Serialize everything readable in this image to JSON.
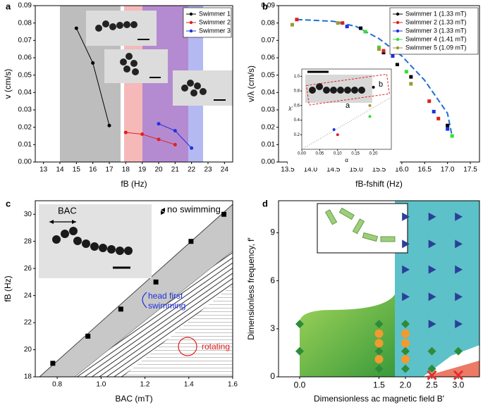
{
  "chart_data": [
    {
      "type": "line",
      "panel": "a",
      "x_label": "fB (Hz)",
      "y_label": "v (cm/s)",
      "xlim": [
        12.5,
        24.5
      ],
      "xticks": [
        13,
        14,
        15,
        16,
        17,
        18,
        19,
        20,
        21,
        22,
        23,
        24
      ],
      "ylim": [
        0,
        0.09
      ],
      "yticks": [
        {
          "value": 0,
          "label": "0.00"
        },
        0.01,
        0.02,
        0.03,
        0.04,
        0.05,
        0.06,
        0.07,
        0.08,
        0.09
      ],
      "legend": "upper right",
      "series": [
        {
          "name": "Swimmer 1",
          "color": "#000000",
          "x": [
            15,
            16,
            17
          ],
          "values": [
            0.077,
            0.057,
            0.021
          ]
        },
        {
          "name": "Swimmer 2",
          "color": "#e02020",
          "x": [
            18,
            19,
            20,
            21
          ],
          "values": [
            0.017,
            0.016,
            0.013,
            0.01
          ]
        },
        {
          "name": "Swimmer 3",
          "color": "#2030e0",
          "x": [
            20,
            21,
            22
          ],
          "values": [
            0.022,
            0.018,
            0.008
          ]
        }
      ]
    },
    {
      "type": "scatter",
      "panel": "b",
      "x_label": "fB-fshift (Hz)",
      "y_label": "v/λ (cm/s)",
      "xlim": [
        13.3,
        17.7
      ],
      "xticks": [
        13.5,
        {
          "value": 14,
          "label": "14.0"
        },
        14.5,
        {
          "value": 15,
          "label": "15.0"
        },
        15.5,
        {
          "value": 16,
          "label": "16.0"
        },
        16.5,
        {
          "value": 17,
          "label": "17.0"
        },
        17.5
      ],
      "ylim": [
        0,
        0.09
      ],
      "yticks": [
        {
          "value": 0,
          "label": "0.00"
        },
        0.01,
        0.02,
        0.03,
        0.04,
        0.05,
        0.06,
        0.07,
        0.08,
        0.09
      ],
      "legend": "upper right",
      "series": [
        {
          "name": "Swimmer 1 (1.33 mT)",
          "color": "#000000",
          "x": [
            15.1,
            15.6,
            15.9,
            16.2,
            17.0
          ],
          "values": [
            0.077,
            0.063,
            0.056,
            0.049,
            0.021
          ]
        },
        {
          "name": "Swimmer 2 (1.33 mT)",
          "color": "#e02020",
          "x": [
            13.7,
            14.7,
            15.6,
            16.6,
            16.8
          ],
          "values": [
            0.082,
            0.08,
            0.064,
            0.035,
            0.025
          ]
        },
        {
          "name": "Swimmer 3 (1.33 mT)",
          "color": "#2030e0",
          "x": [
            14.8,
            15.8,
            16.7,
            17.0
          ],
          "values": [
            0.078,
            0.061,
            0.029,
            0.019
          ]
        },
        {
          "name": "Swimmer 4 (1.41 mT)",
          "color": "#30e030",
          "x": [
            15.2,
            15.5,
            16.1,
            17.1
          ],
          "values": [
            0.075,
            0.066,
            0.052,
            0.015
          ]
        },
        {
          "name": "Swimmer 5 (1.09 mT)",
          "color": "#9a9a30",
          "x": [
            13.6,
            14.6,
            15.5,
            16.2
          ],
          "values": [
            0.079,
            0.08,
            0.065,
            0.045
          ]
        }
      ],
      "fit": {
        "color": "#1f6fd1",
        "x": [
          13.7,
          14.5,
          15.0,
          15.5,
          16.0,
          16.5,
          17.0,
          17.1
        ],
        "values": [
          0.082,
          0.081,
          0.078,
          0.071,
          0.061,
          0.047,
          0.028,
          0.015
        ]
      },
      "inset": {
        "x_label": "α",
        "y_label": "λ′",
        "xlim": [
          0,
          0.25
        ],
        "xticks": [
          {
            "value": 0,
            "label": "0.00"
          },
          0.05,
          {
            "value": 0.1,
            "label": "0.10"
          },
          0.15,
          {
            "value": 0.2,
            "label": "0.20"
          }
        ],
        "ylim": [
          0,
          1.1
        ],
        "yticks": [
          0.2,
          0.4,
          0.6,
          0.8,
          {
            "value": 1,
            "label": "1.0"
          }
        ],
        "x": [
          0.2,
          0.19,
          0.19,
          0.09,
          0.1
        ],
        "values": [
          0.85,
          0.6,
          0.45,
          0.27,
          0.2
        ],
        "colors": [
          "#000000",
          "#9a9a30",
          "#30e030",
          "#2030e0",
          "#e02020"
        ],
        "labels": [
          "a",
          "b"
        ]
      }
    },
    {
      "type": "scatter",
      "panel": "c",
      "x_label": "BAC (mT)",
      "y_label": "fB (Hz)",
      "xlim": [
        0.7,
        1.6
      ],
      "xticks": [
        0.8,
        {
          "value": 1,
          "label": "1.0"
        },
        1.2,
        1.4,
        1.6
      ],
      "ylim": [
        18,
        31
      ],
      "yticks": [
        18,
        20,
        22,
        24,
        26,
        28,
        30
      ],
      "series": [
        {
          "color": "#000000",
          "x": [
            0.78,
            0.94,
            1.09,
            1.25,
            1.41,
            1.56
          ],
          "values": [
            19,
            21,
            23,
            25,
            28,
            30
          ]
        }
      ],
      "annotations": [
        {
          "text": "no swimming",
          "color": "#000000"
        },
        {
          "text": "head first",
          "color": "#2030e0"
        },
        {
          "text": "swimming",
          "color": "#2030e0"
        },
        {
          "text": "rotating",
          "color": "#e02020"
        },
        {
          "text": "BAC",
          "color": "#000000"
        }
      ]
    },
    {
      "type": "scatter",
      "panel": "d",
      "x_label": "Dimensionless ac magnetic field B′",
      "y_label": "Dimensionless frequency, f′",
      "xlim": [
        -0.4,
        3.4
      ],
      "xticks": [
        {
          "value": 0,
          "label": "0.0"
        },
        1.5,
        {
          "value": 2,
          "label": "2.0"
        },
        2.5,
        {
          "value": 3,
          "label": "3.0"
        }
      ],
      "ylim": [
        0,
        11
      ],
      "yticks": [
        0,
        3,
        6,
        9
      ],
      "series": [
        {
          "marker": "diamond",
          "color": "#2e8b3a",
          "x": [
            0,
            0,
            1.5,
            1.5,
            1.5,
            2,
            2,
            2,
            2.5,
            3,
            2.5
          ],
          "values": [
            3.3,
            1.6,
            3.3,
            1.6,
            0.5,
            3.3,
            1.6,
            0.5,
            1.6,
            1.6,
            0.5
          ]
        },
        {
          "marker": "circle",
          "color": "#f39a2e",
          "x": [
            1.5,
            1.5,
            1.5,
            2,
            2,
            2
          ],
          "values": [
            2.7,
            2.1,
            1.1,
            2.7,
            2.1,
            1.1
          ]
        },
        {
          "marker": "triangle",
          "color": "#2b3f99",
          "x": [
            2,
            2,
            2,
            2,
            2.5,
            2.5,
            2.5,
            2.5,
            2.5,
            3,
            3,
            3,
            3,
            3
          ],
          "values": [
            10,
            8.3,
            6.7,
            5,
            10,
            8.3,
            6.7,
            5,
            3.3,
            10,
            8.3,
            6.7,
            5,
            3.3
          ]
        },
        {
          "marker": "x",
          "color": "#e03030",
          "x": [
            2.5,
            3
          ],
          "values": [
            0.1,
            0.1
          ]
        }
      ]
    }
  ]
}
